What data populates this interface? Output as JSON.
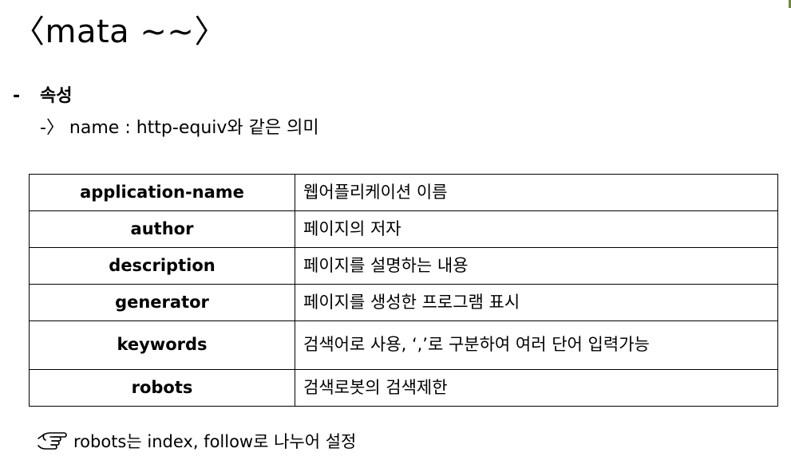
{
  "title": "〈mata ~~〉",
  "section": {
    "bullet": "-",
    "label": "속성",
    "note": "-〉 name : http-equiv와 같은 의미"
  },
  "table": {
    "rows": [
      {
        "name": "application-name",
        "desc": "웹어플리케이션 이름"
      },
      {
        "name": "author",
        "desc": "페이지의 저자"
      },
      {
        "name": "description",
        "desc": "페이지를 설명하는 내용"
      },
      {
        "name": "generator",
        "desc": "페이지를 생성한 프로그램 표시"
      },
      {
        "name": "keywords",
        "desc": "검색어로 사용, ‘,’로 구분하여 여러 단어 입력가능"
      },
      {
        "name": "robots",
        "desc": "검색로봇의 검색제한"
      }
    ]
  },
  "footnote": {
    "icon": "pointing-hand-icon",
    "text": "robots는 index, follow로 나누어 설정"
  },
  "colors": {
    "text": "#000000",
    "background": "#ffffff",
    "corner_accent": "#6b8e23"
  }
}
